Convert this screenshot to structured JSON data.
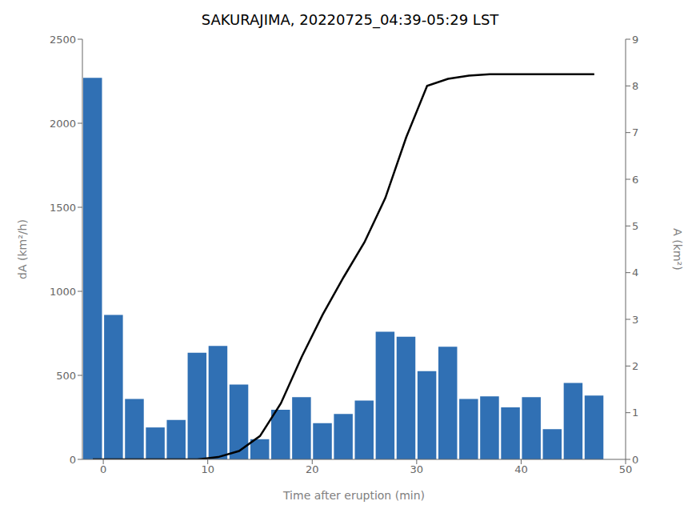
{
  "chart_data": {
    "type": "bar",
    "title": "SAKURAJIMA, 20220725_04:39-05:29 LST",
    "xlabel": "Time after eruption (min)",
    "ylabel": "dA (km²/h)",
    "y2label": "A (km²)",
    "x": [
      -1,
      1,
      3,
      5,
      7,
      9,
      11,
      13,
      15,
      17,
      19,
      21,
      23,
      25,
      27,
      29,
      31,
      33,
      35,
      37,
      39,
      41,
      43,
      45,
      47
    ],
    "series": [
      {
        "type": "bar",
        "color": "#3070b4",
        "values": [
          2270,
          860,
          360,
          190,
          235,
          635,
          675,
          445,
          120,
          295,
          370,
          215,
          270,
          350,
          760,
          730,
          525,
          670,
          360,
          375,
          310,
          370,
          180,
          455,
          380
        ]
      },
      {
        "type": "line",
        "axis": "y2",
        "color": "#000000",
        "values": [
          0.0,
          0.0,
          0.0,
          0.0,
          0.0,
          0.0,
          0.05,
          0.18,
          0.5,
          1.2,
          2.2,
          3.1,
          3.9,
          4.65,
          5.6,
          6.9,
          8.0,
          8.15,
          8.22,
          8.25,
          8.25,
          8.25,
          8.25,
          8.25,
          8.25
        ]
      }
    ],
    "xlim": [
      -2,
      50
    ],
    "xticks": [
      0,
      10,
      20,
      30,
      40,
      50
    ],
    "ylim": [
      0,
      2500
    ],
    "yticks": [
      0,
      500,
      1000,
      1500,
      2000,
      2500
    ],
    "y2lim": [
      0,
      9
    ],
    "y2ticks": [
      0,
      1,
      2,
      3,
      4,
      5,
      6,
      7,
      8,
      9
    ],
    "grid": false
  }
}
